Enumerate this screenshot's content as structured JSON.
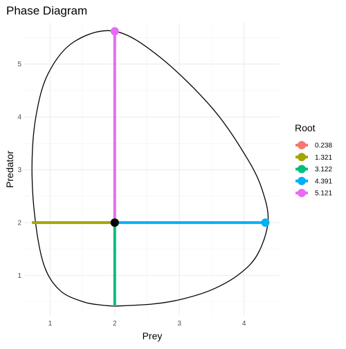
{
  "chart_data": {
    "type": "line",
    "title": "Phase Diagram",
    "xlabel": "Prey",
    "ylabel": "Predator",
    "xlim": [
      0.6,
      4.55
    ],
    "ylim": [
      0.25,
      5.78
    ],
    "x_ticks": [
      1,
      2,
      3,
      4
    ],
    "y_ticks": [
      1,
      2,
      3,
      4,
      5
    ],
    "x_tick_labels": [
      "1",
      "2",
      "3",
      "4"
    ],
    "y_tick_labels": [
      "1",
      "2",
      "3",
      "4",
      "5"
    ],
    "grid": true,
    "legend": {
      "title": "Root",
      "placement": "right",
      "entries": [
        "0.238",
        "1.321",
        "3.122",
        "4.391",
        "5.121"
      ]
    },
    "center": {
      "x": 2.0,
      "y": 2.0
    },
    "orbit": {
      "x": [
        2.0,
        2.59,
        3.03,
        3.5,
        3.92,
        4.21,
        4.37,
        4.3,
        4.07,
        3.52,
        2.7,
        2.0,
        1.37,
        0.97,
        0.78,
        0.72,
        0.77,
        0.91,
        1.16,
        1.52,
        1.8,
        2.0
      ],
      "y": [
        0.42,
        0.46,
        0.55,
        0.73,
        1.02,
        1.4,
        2.0,
        2.55,
        3.17,
        4.15,
        5.13,
        5.62,
        5.42,
        4.82,
        4.0,
        3.05,
        2.05,
        1.18,
        0.71,
        0.5,
        0.44,
        0.42
      ]
    },
    "series": [
      {
        "name": "0.238",
        "color": "#F8766D",
        "x": [
          2.0,
          2.0
        ],
        "y": [
          2.0,
          2.0
        ]
      },
      {
        "name": "1.321",
        "color": "#A3A500",
        "x": [
          0.72,
          2.0
        ],
        "y": [
          2.0,
          2.0
        ]
      },
      {
        "name": "3.122",
        "color": "#00BF7D",
        "x": [
          2.0,
          2.0
        ],
        "y": [
          0.42,
          2.0
        ]
      },
      {
        "name": "4.391",
        "color": "#00B0F6",
        "x": [
          2.0,
          4.33
        ],
        "y": [
          2.0,
          2.0
        ]
      },
      {
        "name": "5.121",
        "color": "#E76BF3",
        "x": [
          2.0,
          2.0
        ],
        "y": [
          2.0,
          5.62
        ]
      }
    ]
  }
}
